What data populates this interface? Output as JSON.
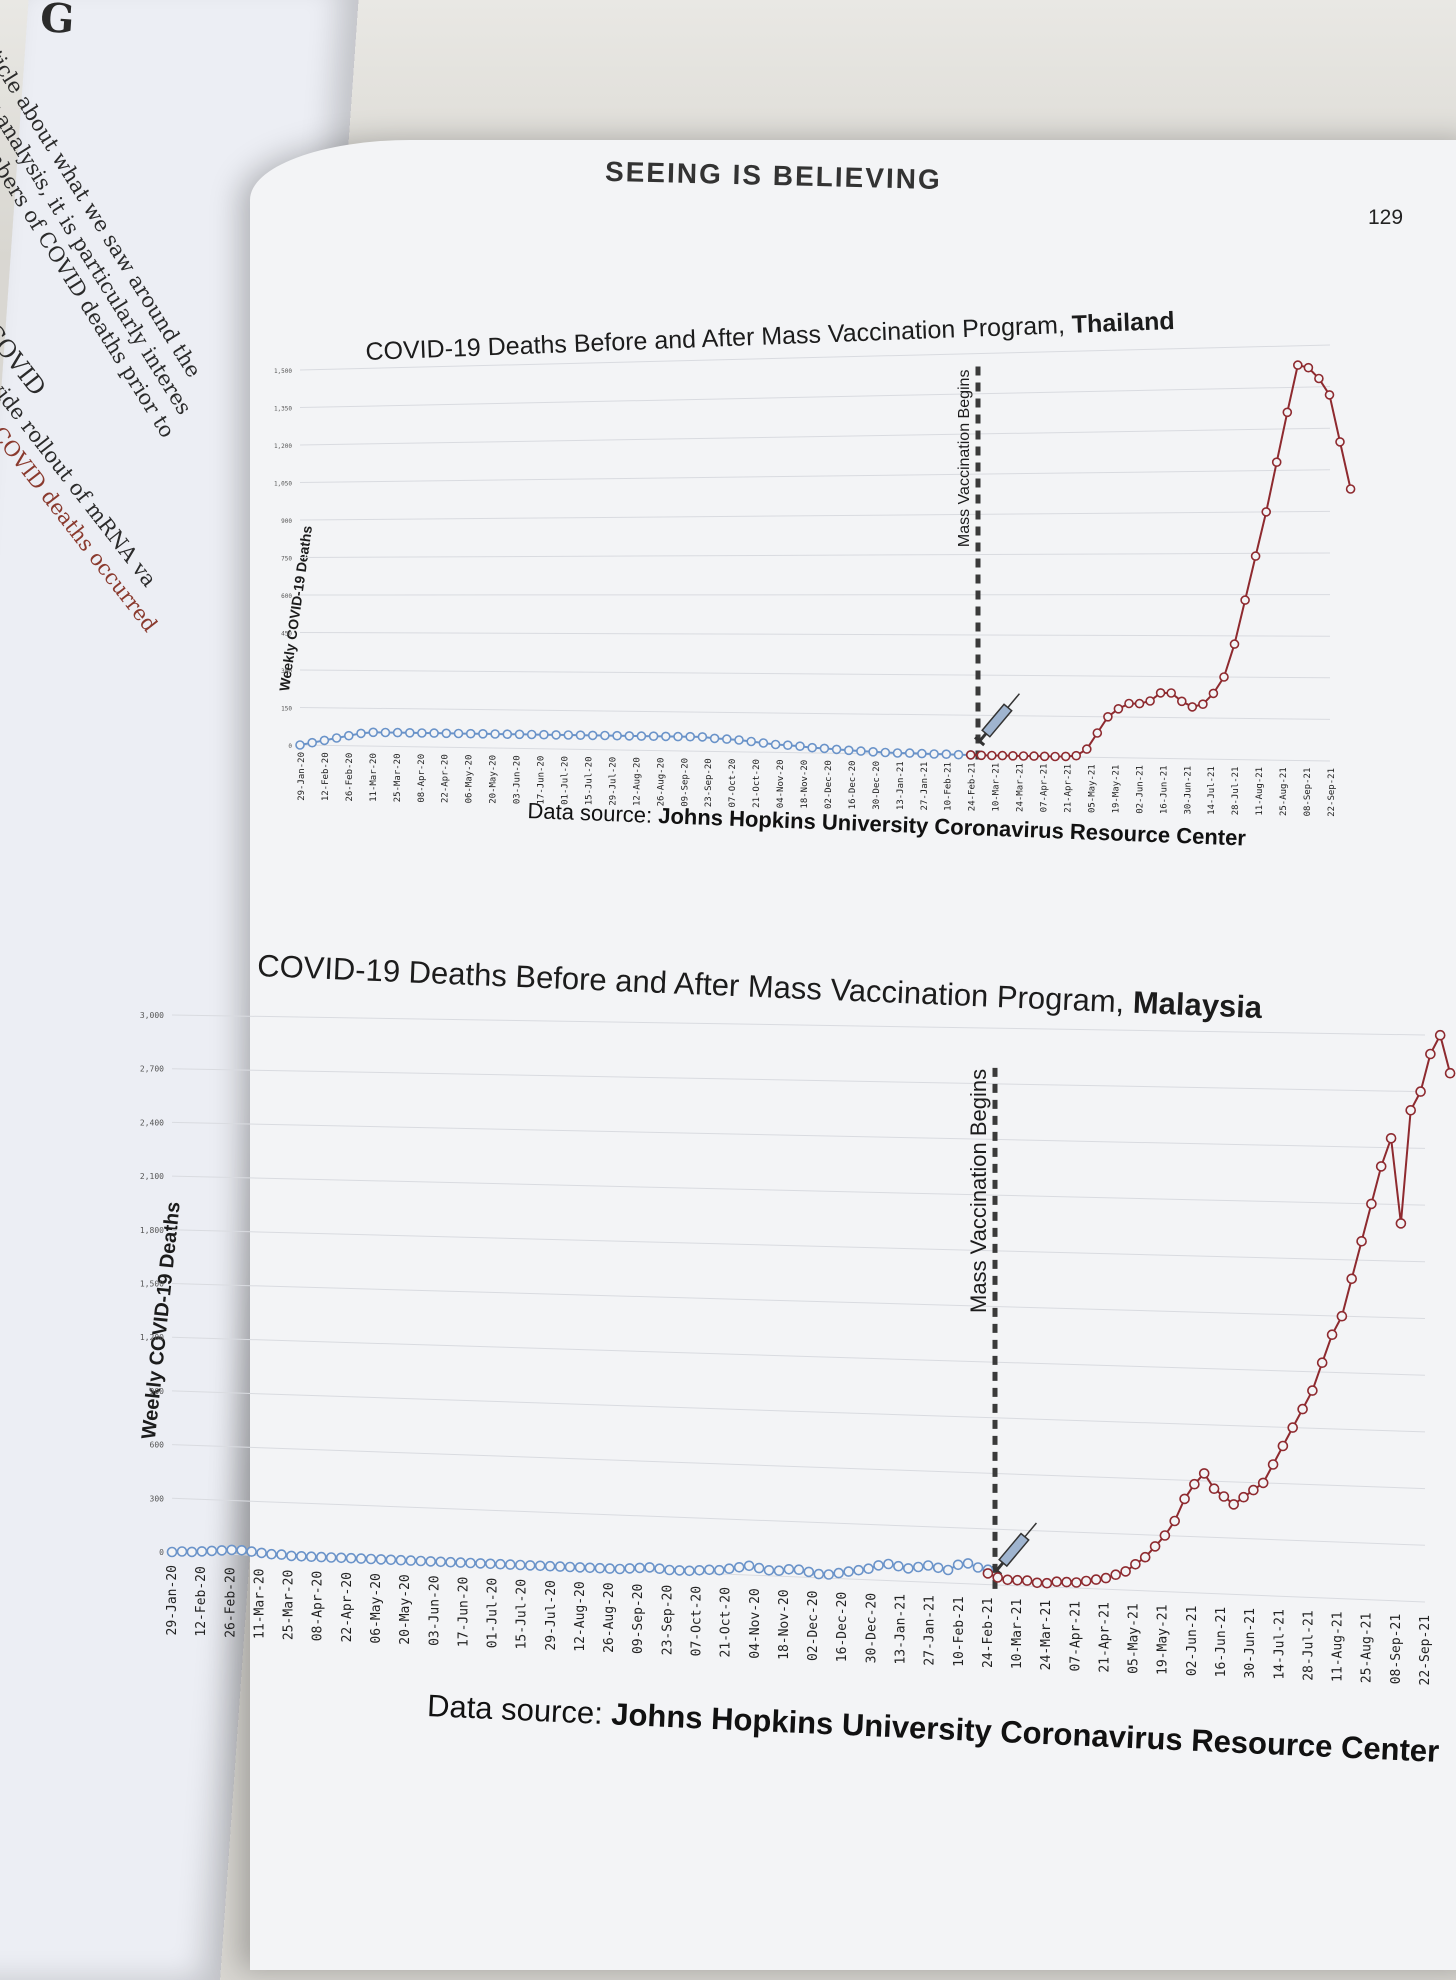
{
  "page": {
    "title": "SEEING IS BELIEVING",
    "number": "129"
  },
  "left_page": {
    "heading_fragment": "G",
    "lines": [
      "ticle about what we saw around the",
      "r analysis, it is particularly interes",
      "mbers of COVID deaths prior to"
    ],
    "section_lines": [
      "COVID",
      "wide rollout of mRNA va",
      "COVID deaths occurred"
    ]
  },
  "colors": {
    "before": "#6a93c9",
    "after": "#8e2a2f",
    "marker": "#3a3a3a"
  },
  "chart_data": [
    {
      "type": "line",
      "title": "COVID-19 Deaths Before and After Mass Vaccination Program,",
      "country": "Thailand",
      "ylabel": "Weekly COVID-19 Deaths",
      "annotation": "Mass Vaccination Begins",
      "annotation_at": "24-Feb-21",
      "x_tick_labels": [
        "29-Jan-20",
        "12-Feb-20",
        "26-Feb-20",
        "11-Mar-20",
        "25-Mar-20",
        "08-Apr-20",
        "22-Apr-20",
        "06-May-20",
        "20-May-20",
        "03-Jun-20",
        "17-Jun-20",
        "01-Jul-20",
        "15-Jul-20",
        "29-Jul-20",
        "12-Aug-20",
        "26-Aug-20",
        "09-Sep-20",
        "23-Sep-20",
        "07-Oct-20",
        "21-Oct-20",
        "04-Nov-20",
        "18-Nov-20",
        "02-Dec-20",
        "16-Dec-20",
        "30-Dec-20",
        "13-Jan-21",
        "27-Jan-21",
        "10-Feb-21",
        "24-Feb-21",
        "10-Mar-21",
        "24-Mar-21",
        "07-Apr-21",
        "21-Apr-21",
        "05-May-21",
        "19-May-21",
        "02-Jun-21",
        "16-Jun-21",
        "30-Jun-21",
        "14-Jul-21",
        "28-Jul-21",
        "11-Aug-21",
        "25-Aug-21",
        "08-Sep-21",
        "22-Sep-21"
      ],
      "y_tick_labels": [
        "0",
        "150",
        "300",
        "450",
        "600",
        "750",
        "900",
        "1,050",
        "1,200",
        "1,350",
        "1,500"
      ],
      "ylim": [
        0,
        1500
      ],
      "series": [
        {
          "period": "before",
          "values": [
            0,
            10,
            20,
            30,
            40,
            50,
            55,
            55,
            55,
            55,
            55,
            55,
            55,
            55,
            55,
            55,
            55,
            55,
            55,
            55,
            55,
            55,
            55,
            55,
            55,
            55,
            55,
            55,
            55,
            55,
            55,
            55,
            55,
            55,
            50,
            48,
            45,
            40,
            35,
            30,
            28,
            25,
            20,
            18,
            15,
            12,
            10,
            8,
            6,
            5,
            5,
            4,
            3,
            3,
            2,
            2
          ]
        },
        {
          "period": "after",
          "values": [
            2,
            1,
            1,
            1,
            1,
            1,
            1,
            1,
            1,
            2,
            5,
            30,
            90,
            150,
            180,
            200,
            200,
            210,
            240,
            240,
            210,
            190,
            200,
            240,
            300,
            420,
            580,
            740,
            900,
            1080,
            1260,
            1430,
            1420,
            1380,
            1320,
            1150,
            980
          ]
        }
      ]
    },
    {
      "type": "line",
      "title": "COVID-19 Deaths Before and After Mass Vaccination Program,",
      "country": "Malaysia",
      "ylabel": "Weekly COVID-19 Deaths",
      "annotation": "Mass Vaccination Begins",
      "annotation_at": "24-Feb-21",
      "x_tick_labels": [
        "29-Jan-20",
        "12-Feb-20",
        "26-Feb-20",
        "11-Mar-20",
        "25-Mar-20",
        "08-Apr-20",
        "22-Apr-20",
        "06-May-20",
        "20-May-20",
        "03-Jun-20",
        "17-Jun-20",
        "01-Jul-20",
        "15-Jul-20",
        "29-Jul-20",
        "12-Aug-20",
        "26-Aug-20",
        "09-Sep-20",
        "23-Sep-20",
        "07-Oct-20",
        "21-Oct-20",
        "04-Nov-20",
        "18-Nov-20",
        "02-Dec-20",
        "16-Dec-20",
        "30-Dec-20",
        "13-Jan-21",
        "27-Jan-21",
        "10-Feb-21",
        "24-Feb-21",
        "10-Mar-21",
        "24-Mar-21",
        "07-Apr-21",
        "21-Apr-21",
        "05-May-21",
        "19-May-21",
        "02-Jun-21",
        "16-Jun-21",
        "30-Jun-21",
        "14-Jul-21",
        "28-Jul-21",
        "11-Aug-21",
        "25-Aug-21",
        "08-Sep-21",
        "22-Sep-21"
      ],
      "y_tick_labels": [
        "0",
        "300",
        "600",
        "900",
        "1,200",
        "1,500",
        "1,800",
        "2,100",
        "2,400",
        "2,700",
        "3,000"
      ],
      "ylim": [
        0,
        3000
      ],
      "series": [
        {
          "period": "before",
          "values": [
            0,
            5,
            5,
            10,
            15,
            20,
            25,
            25,
            20,
            15,
            10,
            10,
            5,
            5,
            5,
            5,
            5,
            5,
            5,
            5,
            5,
            5,
            5,
            5,
            5,
            5,
            5,
            5,
            5,
            5,
            5,
            5,
            5,
            5,
            5,
            5,
            5,
            5,
            5,
            5,
            5,
            5,
            5,
            5,
            5,
            5,
            10,
            15,
            20,
            15,
            10,
            10,
            10,
            15,
            20,
            20,
            30,
            40,
            50,
            40,
            30,
            30,
            40,
            40,
            30,
            20,
            20,
            30,
            40,
            50,
            60,
            80,
            90,
            80,
            70,
            80,
            90,
            80,
            70,
            100,
            110,
            90,
            80
          ]
        },
        {
          "period": "after",
          "values": [
            60,
            40,
            30,
            30,
            30,
            20,
            20,
            30,
            30,
            30,
            40,
            50,
            60,
            80,
            100,
            140,
            180,
            240,
            300,
            380,
            500,
            580,
            640,
            560,
            520,
            480,
            520,
            560,
            600,
            700,
            800,
            900,
            1000,
            1100,
            1250,
            1400,
            1500,
            1700,
            1900,
            2100,
            2300,
            2450,
            2000,
            2600,
            2700,
            2900,
            3000,
            2800
          ]
        }
      ]
    }
  ]
}
